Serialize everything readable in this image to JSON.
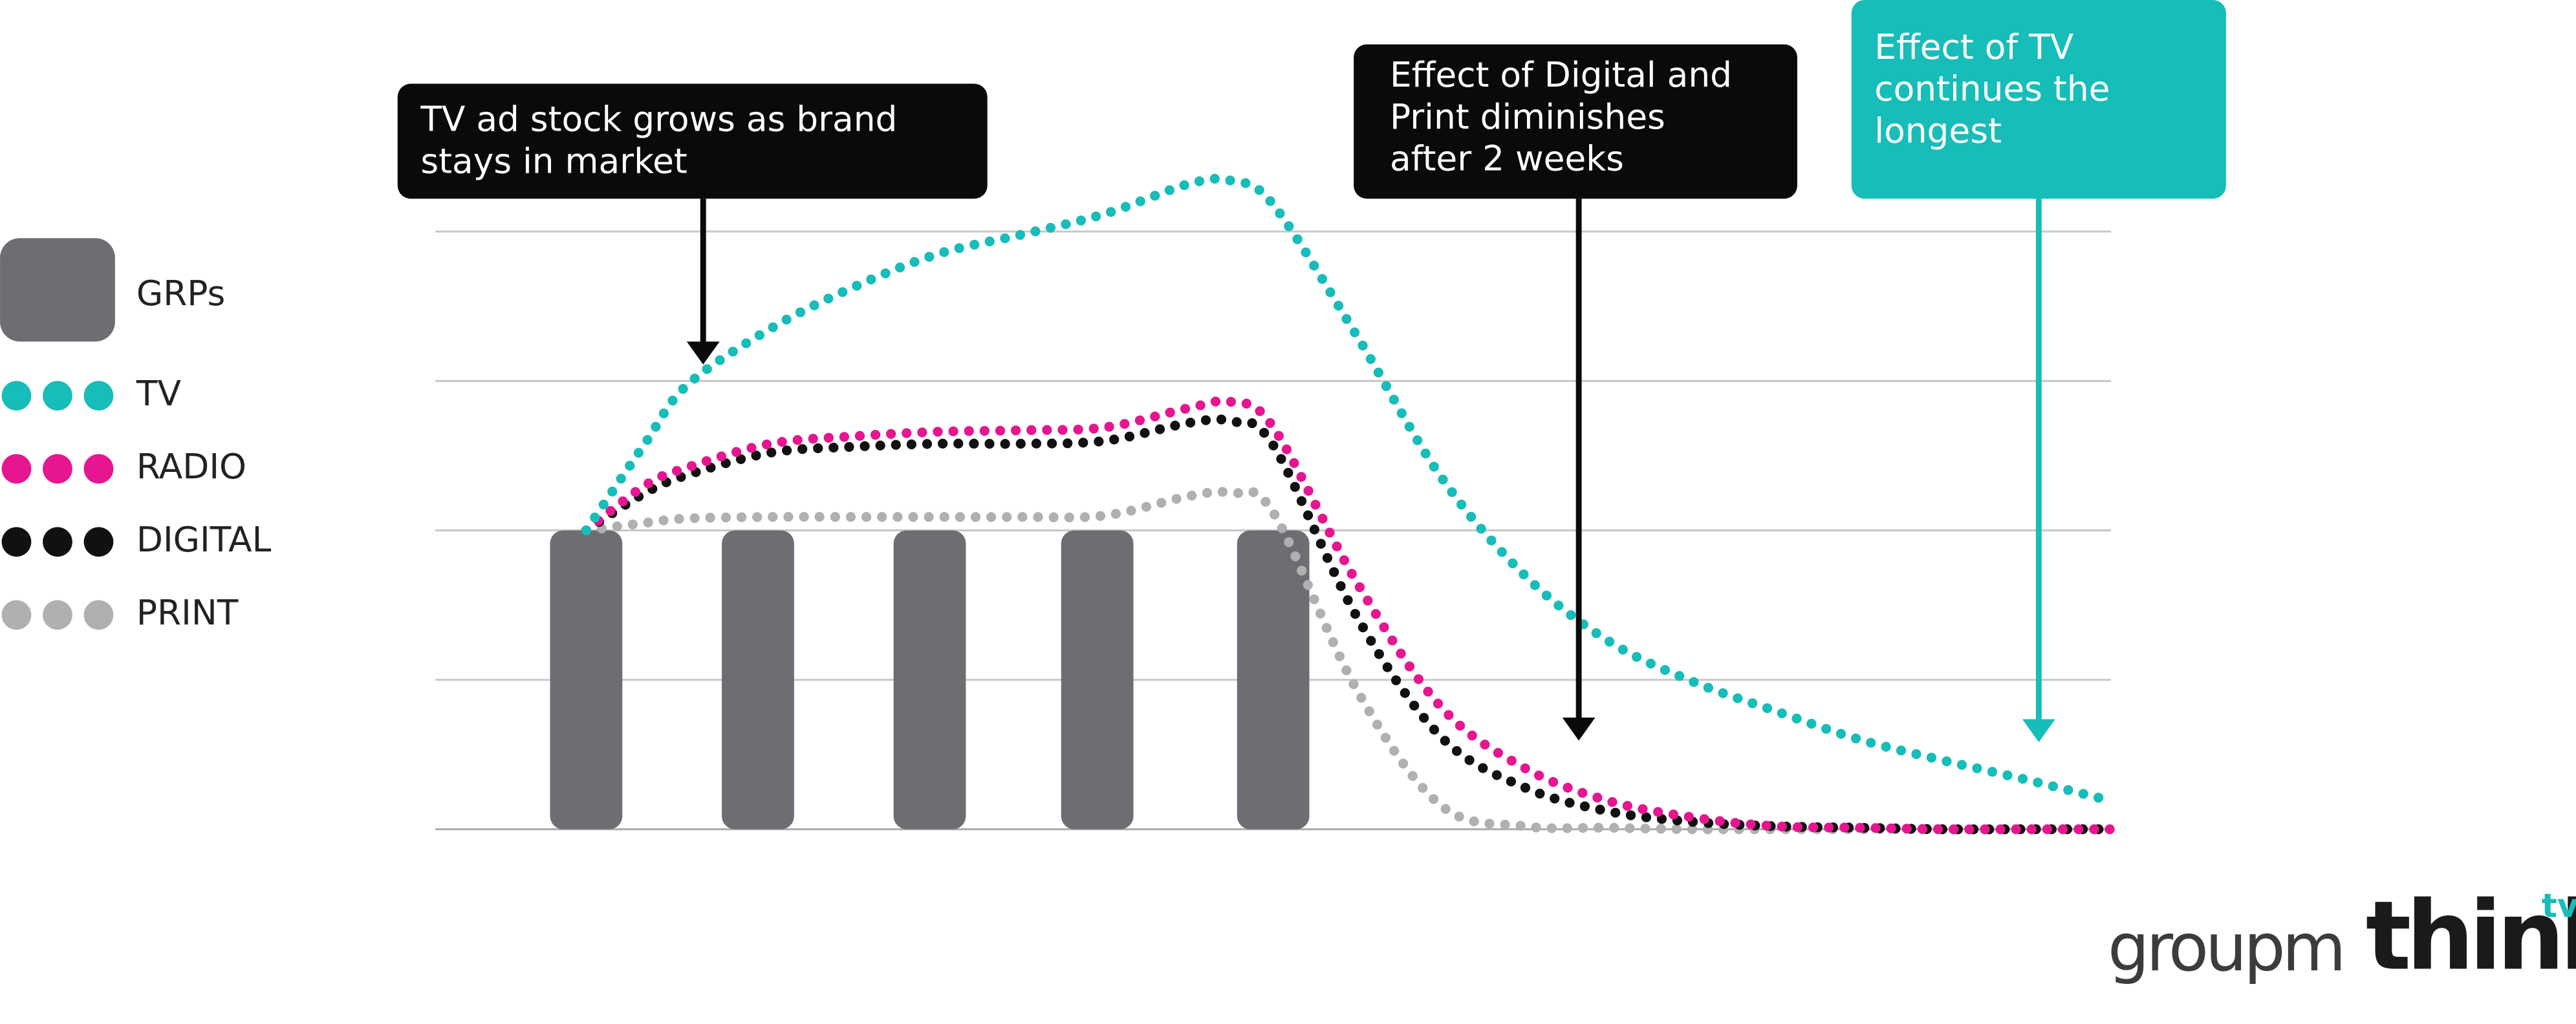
{
  "chart_data": {
    "type": "line",
    "xlim": [
      0,
      20
    ],
    "ylim": [
      0,
      4
    ],
    "yticks": [
      0,
      1,
      2,
      3,
      4
    ],
    "grid": true,
    "bars": {
      "name": "GRPs",
      "color": "#6d6e71",
      "x": [
        1.8,
        3.85,
        5.9,
        7.9,
        10
      ],
      "values": [
        2,
        2,
        2,
        2,
        2
      ]
    },
    "x": [
      1.8,
      2.5,
      3,
      4,
      5,
      6,
      7,
      8,
      9,
      9.5,
      10,
      11,
      12,
      13,
      14,
      15,
      16,
      17,
      18,
      19,
      20
    ],
    "series": [
      {
        "name": "TV",
        "color": "#17bdb8",
        "values": [
          2.0,
          2.58,
          2.97,
          3.35,
          3.63,
          3.85,
          3.98,
          4.12,
          4.32,
          4.34,
          4.18,
          3.3,
          2.36,
          1.7,
          1.26,
          0.99,
          0.79,
          0.6,
          0.46,
          0.33,
          0.19
        ]
      },
      {
        "name": "RADIO",
        "color": "#e5168f",
        "values": [
          2.0,
          2.3,
          2.42,
          2.58,
          2.63,
          2.66,
          2.67,
          2.69,
          2.82,
          2.86,
          2.69,
          1.65,
          0.82,
          0.41,
          0.19,
          0.08,
          0.02,
          0.01,
          0,
          0,
          0
        ]
      },
      {
        "name": "DIGITAL",
        "color": "#111111",
        "values": [
          2.0,
          2.25,
          2.37,
          2.52,
          2.56,
          2.58,
          2.58,
          2.6,
          2.72,
          2.73,
          2.57,
          1.42,
          0.62,
          0.28,
          0.12,
          0.05,
          0.02,
          0.01,
          0,
          0,
          0
        ]
      },
      {
        "name": "PRINT",
        "color": "#b0b0b0",
        "values": [
          2.0,
          2.05,
          2.08,
          2.09,
          2.09,
          2.09,
          2.09,
          2.1,
          2.23,
          2.25,
          2.12,
          0.93,
          0.16,
          0.02,
          0.01,
          0,
          0,
          0,
          0,
          0,
          0
        ]
      }
    ],
    "annotations": [
      {
        "lines": [
          "TV ad stock grows as brand",
          "stays in market"
        ],
        "color": "#0a0a0a"
      },
      {
        "lines": [
          "Effect of Digital and",
          "Print diminishes",
          "after 2 weeks"
        ],
        "color": "#0a0a0a"
      },
      {
        "lines": [
          "Effect of TV",
          "continues the",
          "longest"
        ],
        "color": "#17bdb8"
      }
    ],
    "logos": [
      "groupm",
      "think",
      "tv"
    ]
  }
}
